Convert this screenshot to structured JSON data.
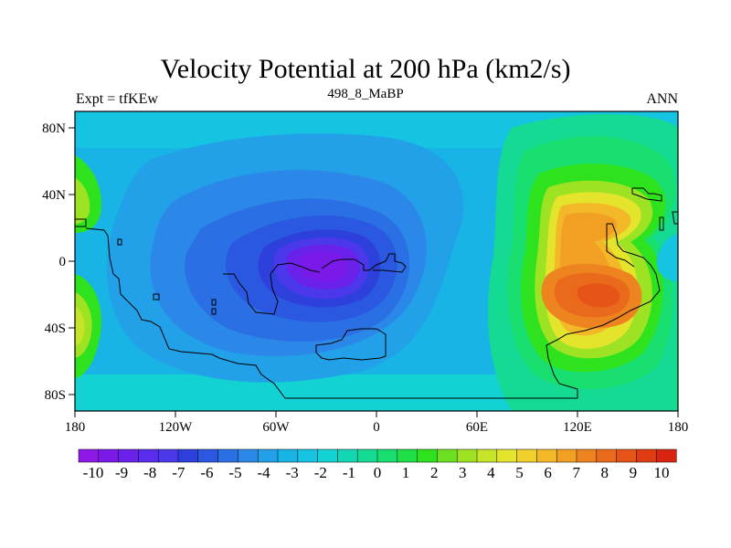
{
  "title": "Velocity Potential at 200 hPa (km2/s)",
  "left_string": "Expt = tfKEw",
  "center_string": "498_8_MaBP",
  "right_string": "ANN",
  "x_ticks": [
    "180",
    "120W",
    "60W",
    "0",
    "60E",
    "120E",
    "180"
  ],
  "y_ticks": [
    "80N",
    "40N",
    "0",
    "40S",
    "80S"
  ],
  "colorbar_labels": [
    "-10",
    "-9",
    "-8",
    "-7",
    "-6",
    "-5",
    "-4",
    "-3",
    "-2",
    "-1",
    "0",
    "1",
    "2",
    "3",
    "4",
    "5",
    "6",
    "7",
    "8",
    "9",
    "10"
  ],
  "colorbar_colors": [
    "#8e18e6",
    "#7a1ae8",
    "#6a22ea",
    "#5a2cec",
    "#4a38ea",
    "#2e40dc",
    "#2a58e0",
    "#2a70e4",
    "#2c88e8",
    "#22a0e8",
    "#18b4e6",
    "#14c4e0",
    "#12d2d4",
    "#12d6b4",
    "#14da94",
    "#18de70",
    "#1ee046",
    "#2ee21e",
    "#6ee022",
    "#9ee224",
    "#c6e428",
    "#e4e42c",
    "#f0d02a",
    "#f2b828",
    "#f2a024",
    "#ee8420",
    "#ea6a1c",
    "#e65418",
    "#e03c14",
    "#d82410"
  ],
  "map": {
    "projection": "cylindrical-equidistant",
    "lon_range": [
      -180,
      180
    ],
    "lat_range": [
      -90,
      90
    ],
    "field": "velocity potential anomaly",
    "max_center": {
      "lon": 127,
      "lat": -25,
      "value": 9
    },
    "min_center": {
      "lon": -28,
      "lat": -4,
      "value": -9
    }
  }
}
